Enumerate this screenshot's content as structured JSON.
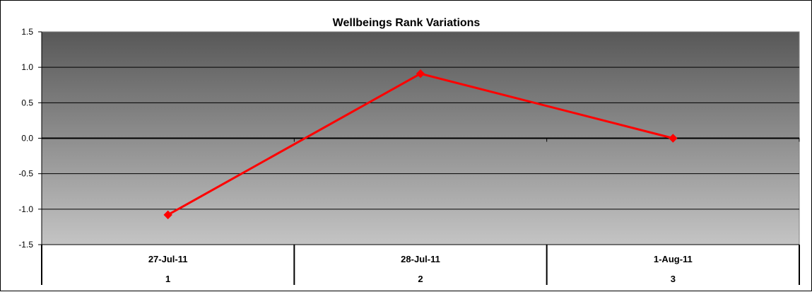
{
  "chart_data": {
    "type": "line",
    "title": "Wellbeings Rank Variations",
    "xlabel": "",
    "ylabel": "",
    "ylim": [
      -1.5,
      1.5
    ],
    "ytick_step": 0.5,
    "categories": [
      "27-Jul-11",
      "28-Jul-11",
      "1-Aug-11"
    ],
    "category_index_labels": [
      "1",
      "2",
      "3"
    ],
    "series": [
      {
        "values": [
          -1.08,
          0.91,
          0.0
        ],
        "color": "#ff0000"
      }
    ],
    "grid": true,
    "legend": "none"
  }
}
